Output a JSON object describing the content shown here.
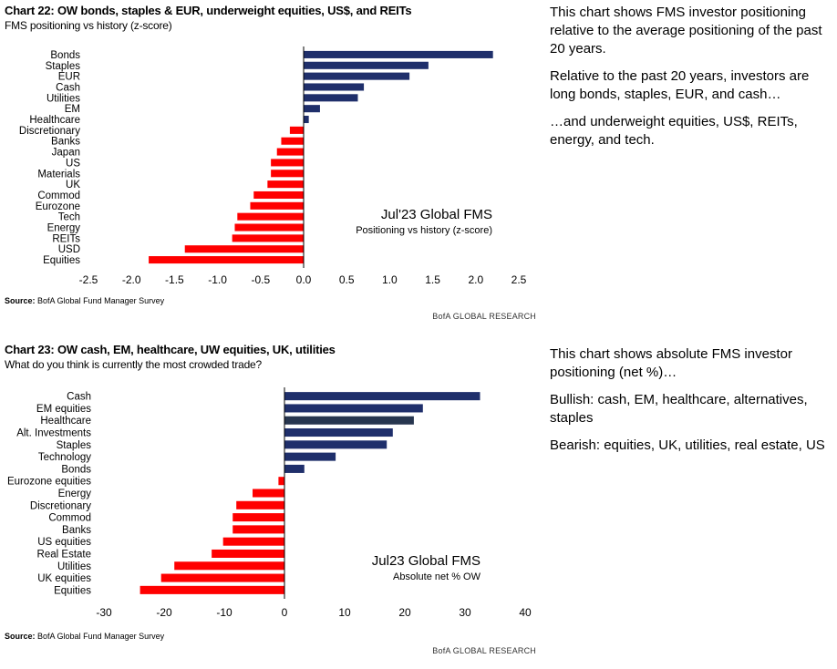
{
  "panels": [
    {
      "title": "Chart 22: OW bonds, staples & EUR, underweight equities, US$, and REITs",
      "subtitle": "FMS positioning vs history (z-score)",
      "annotation_title": "Jul'23 Global FMS",
      "annotation_subtitle": "Positioning vs history (z-score)",
      "source_label": "Source:",
      "source_text": "BofA Global Fund Manager Survey",
      "brand": "BofA GLOBAL RESEARCH"
    },
    {
      "title": "Chart 23: OW cash, EM, healthcare, UW equities, UK, utilities",
      "subtitle": "What do you think is currently the most crowded trade?",
      "annotation_title": "Jul23 Global FMS",
      "annotation_subtitle": "Absolute net % OW",
      "source_label": "Source:",
      "source_text": "BofA Global Fund Manager Survey",
      "brand": "BofA GLOBAL RESEARCH"
    }
  ],
  "commentary": [
    [
      "This chart shows FMS investor positioning relative to the average positioning of the past 20 years.",
      "Relative to the past 20 years, investors are long bonds, staples, EUR, and cash…",
      "…and underweight equities, US$, REITs, energy, and tech."
    ],
    [
      "This chart shows absolute FMS investor positioning (net %)…",
      "Bullish: cash, EM, healthcare, alternatives, staples",
      "Bearish: equities, UK, utilities, real estate, US"
    ]
  ],
  "colors": {
    "positive": "#1f2f6b",
    "positive_alt": "#27364f",
    "negative": "#ff0000",
    "axis": "#000000"
  },
  "chart_data": [
    {
      "type": "bar",
      "orientation": "horizontal",
      "categories": [
        "Bonds",
        "Staples",
        "EUR",
        "Cash",
        "Utilities",
        "EM",
        "Healthcare",
        "Discretionary",
        "Banks",
        "Japan",
        "US",
        "Materials",
        "UK",
        "Commod",
        "Eurozone",
        "Tech",
        "Energy",
        "REITs",
        "USD",
        "Equities"
      ],
      "values": [
        2.2,
        1.45,
        1.23,
        0.7,
        0.63,
        0.19,
        0.06,
        -0.16,
        -0.26,
        -0.31,
        -0.38,
        -0.38,
        -0.42,
        -0.58,
        -0.62,
        -0.77,
        -0.8,
        -0.83,
        -1.38,
        -1.8
      ],
      "xlim": [
        -2.5,
        2.5
      ],
      "xticks": [
        -2.5,
        -2.0,
        -1.5,
        -1.0,
        -0.5,
        0.0,
        0.5,
        1.0,
        1.5,
        2.0,
        2.5
      ],
      "xtick_labels": [
        "-2.5",
        "-2.0",
        "-1.5",
        "-1.0",
        "-0.5",
        "0.0",
        "0.5",
        "1.0",
        "1.5",
        "2.0",
        "2.5"
      ],
      "grid": false,
      "xlabel": "",
      "ylabel": ""
    },
    {
      "type": "bar",
      "orientation": "horizontal",
      "categories": [
        "Cash",
        "EM equities",
        "Healthcare",
        "Alt. Investments",
        "Staples",
        "Technology",
        "Bonds",
        "Eurozone equities",
        "Energy",
        "Discretionary",
        "Commod",
        "Banks",
        "US equities",
        "Real Estate",
        "Utilities",
        "UK equities",
        "Equities"
      ],
      "values": [
        32.5,
        23,
        21.5,
        18,
        17,
        8.5,
        3.3,
        -1,
        -5.3,
        -8,
        -8.6,
        -8.6,
        -10.2,
        -12.1,
        -18.3,
        -20.5,
        -24
      ],
      "xlim": [
        -30,
        40
      ],
      "xticks": [
        -30,
        -20,
        -10,
        0,
        10,
        20,
        30,
        40
      ],
      "xtick_labels": [
        "-30",
        "-20",
        "-10",
        "0",
        "10",
        "20",
        "30",
        "40"
      ],
      "grid": false,
      "xlabel": "",
      "ylabel": ""
    }
  ]
}
